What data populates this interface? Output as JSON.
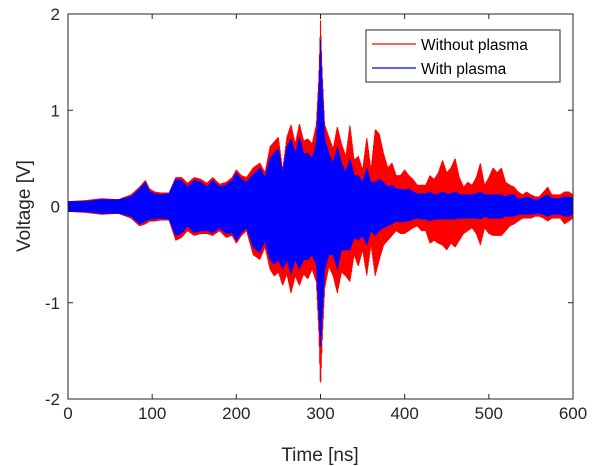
{
  "chart_data": {
    "type": "line",
    "title": "",
    "xlabel": "Time [ns]",
    "ylabel": "Voltage [V]",
    "xlim": [
      0,
      600
    ],
    "ylim": [
      -2,
      2
    ],
    "xticks": [
      0,
      100,
      200,
      300,
      400,
      500,
      600
    ],
    "yticks": [
      -2,
      -1,
      0,
      1,
      2
    ],
    "grid": false,
    "legend_position": "top-right",
    "series": [
      {
        "name": "Without plasma",
        "color": "#ff0000",
        "envelope": {
          "x": [
            0,
            20,
            40,
            60,
            75,
            85,
            92,
            97,
            103,
            110,
            120,
            128,
            135,
            142,
            150,
            158,
            165,
            172,
            180,
            188,
            195,
            200,
            206,
            212,
            220,
            228,
            234,
            240,
            245,
            250,
            255,
            260,
            265,
            270,
            275,
            280,
            285,
            290,
            295,
            298,
            300,
            302,
            305,
            310,
            315,
            320,
            325,
            330,
            335,
            340,
            345,
            350,
            355,
            360,
            365,
            370,
            375,
            380,
            385,
            390,
            395,
            400,
            405,
            410,
            415,
            420,
            425,
            430,
            435,
            440,
            445,
            450,
            455,
            460,
            465,
            470,
            475,
            480,
            485,
            490,
            495,
            500,
            505,
            510,
            515,
            520,
            525,
            530,
            535,
            540,
            545,
            550,
            555,
            560,
            565,
            570,
            575,
            580,
            585,
            590,
            595,
            600
          ],
          "upper": [
            0.05,
            0.06,
            0.08,
            0.07,
            0.12,
            0.2,
            0.27,
            0.18,
            0.15,
            0.14,
            0.14,
            0.3,
            0.3,
            0.24,
            0.3,
            0.28,
            0.24,
            0.3,
            0.23,
            0.25,
            0.3,
            0.38,
            0.32,
            0.3,
            0.4,
            0.45,
            0.35,
            0.62,
            0.67,
            0.72,
            0.38,
            0.72,
            0.85,
            0.65,
            0.86,
            0.68,
            0.7,
            0.65,
            0.85,
            1.35,
            1.93,
            1.4,
            0.85,
            0.72,
            0.6,
            0.83,
            0.65,
            0.52,
            0.85,
            0.48,
            0.52,
            0.38,
            0.72,
            0.38,
            0.8,
            0.75,
            0.55,
            0.4,
            0.45,
            0.32,
            0.32,
            0.38,
            0.32,
            0.28,
            0.22,
            0.22,
            0.22,
            0.32,
            0.28,
            0.35,
            0.48,
            0.35,
            0.4,
            0.5,
            0.3,
            0.2,
            0.25,
            0.22,
            0.3,
            0.45,
            0.22,
            0.3,
            0.4,
            0.35,
            0.4,
            0.25,
            0.22,
            0.2,
            0.15,
            0.12,
            0.15,
            0.12,
            0.1,
            0.1,
            0.15,
            0.2,
            0.12,
            0.12,
            0.12,
            0.15,
            0.15,
            0.12
          ],
          "lower": [
            -0.05,
            -0.06,
            -0.08,
            -0.07,
            -0.12,
            -0.2,
            -0.18,
            -0.15,
            -0.15,
            -0.14,
            -0.14,
            -0.35,
            -0.32,
            -0.25,
            -0.3,
            -0.28,
            -0.28,
            -0.3,
            -0.25,
            -0.32,
            -0.3,
            -0.38,
            -0.3,
            -0.25,
            -0.5,
            -0.55,
            -0.42,
            -0.65,
            -0.72,
            -0.68,
            -0.82,
            -0.7,
            -0.9,
            -0.72,
            -0.82,
            -0.7,
            -0.75,
            -0.65,
            -0.78,
            -1.3,
            -1.9,
            -1.4,
            -0.85,
            -0.62,
            -0.72,
            -0.9,
            -0.68,
            -0.72,
            -0.78,
            -0.5,
            -0.62,
            -0.45,
            -0.72,
            -0.4,
            -0.72,
            -0.55,
            -0.4,
            -0.35,
            -0.3,
            -0.25,
            -0.28,
            -0.28,
            -0.25,
            -0.22,
            -0.2,
            -0.25,
            -0.25,
            -0.38,
            -0.35,
            -0.38,
            -0.4,
            -0.45,
            -0.38,
            -0.42,
            -0.35,
            -0.28,
            -0.25,
            -0.22,
            -0.28,
            -0.4,
            -0.22,
            -0.28,
            -0.3,
            -0.3,
            -0.3,
            -0.25,
            -0.2,
            -0.18,
            -0.15,
            -0.12,
            -0.12,
            -0.12,
            -0.1,
            -0.1,
            -0.12,
            -0.15,
            -0.12,
            -0.12,
            -0.12,
            -0.18,
            -0.15,
            -0.12
          ]
        }
      },
      {
        "name": "With plasma",
        "color": "#0000ff",
        "envelope": {
          "x": [
            0,
            20,
            40,
            60,
            75,
            85,
            92,
            97,
            103,
            110,
            120,
            128,
            135,
            142,
            150,
            158,
            165,
            172,
            180,
            188,
            195,
            200,
            206,
            212,
            220,
            228,
            234,
            240,
            245,
            250,
            255,
            260,
            265,
            270,
            275,
            280,
            285,
            290,
            295,
            298,
            300,
            302,
            305,
            310,
            315,
            320,
            325,
            330,
            335,
            340,
            345,
            350,
            355,
            360,
            365,
            370,
            375,
            380,
            385,
            390,
            395,
            400,
            405,
            410,
            415,
            420,
            425,
            430,
            435,
            440,
            445,
            450,
            455,
            460,
            465,
            470,
            475,
            480,
            485,
            490,
            495,
            500,
            505,
            510,
            515,
            520,
            525,
            530,
            535,
            540,
            545,
            550,
            555,
            560,
            565,
            570,
            575,
            580,
            585,
            590,
            595,
            600
          ],
          "upper": [
            0.05,
            0.05,
            0.07,
            0.07,
            0.1,
            0.18,
            0.25,
            0.15,
            0.13,
            0.12,
            0.13,
            0.28,
            0.27,
            0.2,
            0.27,
            0.25,
            0.2,
            0.27,
            0.2,
            0.22,
            0.27,
            0.35,
            0.28,
            0.25,
            0.33,
            0.4,
            0.3,
            0.5,
            0.55,
            0.6,
            0.35,
            0.62,
            0.7,
            0.55,
            0.72,
            0.55,
            0.55,
            0.5,
            0.65,
            1.2,
            1.72,
            1.25,
            0.7,
            0.55,
            0.45,
            0.62,
            0.45,
            0.35,
            0.5,
            0.32,
            0.32,
            0.25,
            0.4,
            0.25,
            0.25,
            0.28,
            0.25,
            0.2,
            0.22,
            0.18,
            0.18,
            0.17,
            0.18,
            0.15,
            0.13,
            0.13,
            0.13,
            0.15,
            0.12,
            0.13,
            0.15,
            0.13,
            0.13,
            0.15,
            0.12,
            0.12,
            0.12,
            0.12,
            0.13,
            0.15,
            0.12,
            0.12,
            0.12,
            0.12,
            0.12,
            0.1,
            0.12,
            0.12,
            0.08,
            0.08,
            0.1,
            0.08,
            0.07,
            0.07,
            0.1,
            0.12,
            0.08,
            0.08,
            0.08,
            0.1,
            0.1,
            0.08
          ],
          "lower": [
            -0.05,
            -0.05,
            -0.07,
            -0.07,
            -0.1,
            -0.18,
            -0.15,
            -0.13,
            -0.13,
            -0.12,
            -0.13,
            -0.3,
            -0.28,
            -0.2,
            -0.27,
            -0.25,
            -0.25,
            -0.27,
            -0.22,
            -0.28,
            -0.27,
            -0.35,
            -0.27,
            -0.22,
            -0.42,
            -0.48,
            -0.35,
            -0.55,
            -0.6,
            -0.55,
            -0.65,
            -0.55,
            -0.7,
            -0.55,
            -0.65,
            -0.55,
            -0.55,
            -0.5,
            -0.6,
            -1.1,
            -1.5,
            -1.15,
            -0.65,
            -0.5,
            -0.5,
            -0.65,
            -0.45,
            -0.45,
            -0.45,
            -0.32,
            -0.35,
            -0.3,
            -0.4,
            -0.25,
            -0.3,
            -0.25,
            -0.22,
            -0.2,
            -0.18,
            -0.15,
            -0.16,
            -0.15,
            -0.15,
            -0.13,
            -0.12,
            -0.13,
            -0.13,
            -0.15,
            -0.13,
            -0.13,
            -0.13,
            -0.13,
            -0.13,
            -0.13,
            -0.12,
            -0.12,
            -0.12,
            -0.12,
            -0.12,
            -0.13,
            -0.1,
            -0.12,
            -0.12,
            -0.12,
            -0.12,
            -0.1,
            -0.1,
            -0.1,
            -0.08,
            -0.08,
            -0.08,
            -0.08,
            -0.07,
            -0.07,
            -0.08,
            -0.1,
            -0.08,
            -0.08,
            -0.08,
            -0.1,
            -0.1,
            -0.08
          ]
        }
      }
    ]
  }
}
